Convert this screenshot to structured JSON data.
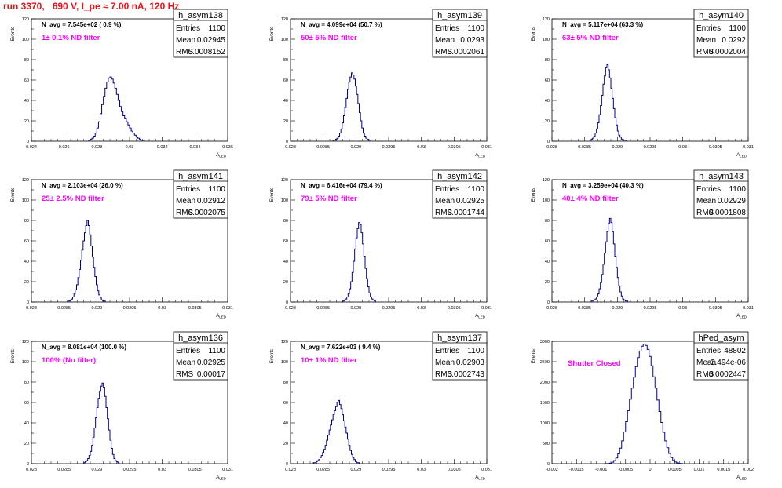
{
  "title": "run 3370,   690 V, I_pe ≈ 7.00 nA, 120 Hz",
  "colors": {
    "title": "#e8141c",
    "histogram": "#00008b",
    "filter_label": "#ff00ff"
  },
  "chart_data": [
    {
      "type": "histogram",
      "name": "h_asym138",
      "ylabel": "Events",
      "xlabel": "A_{LED}",
      "xlim": [
        0.024,
        0.036
      ],
      "ylim": [
        0,
        120
      ],
      "xticks": [
        "0.024",
        "0.026",
        "0.028",
        "0.03",
        "0.032",
        "0.034",
        "0.036"
      ],
      "yticks": [
        "0",
        "20",
        "40",
        "60",
        "80",
        "100",
        "120"
      ],
      "xtick_values": [
        0.024,
        0.026,
        0.028,
        0.03,
        0.032,
        0.034,
        0.036
      ],
      "ytick_values": [
        0,
        20,
        40,
        60,
        80,
        100,
        120
      ],
      "n_avg": "N_avg = 7.545e+02 ( 0.9 %)",
      "filter": "1± 0.1% ND filter",
      "stats": {
        "entries_label": "Entries",
        "entries": "1100",
        "mean_label": "Mean",
        "mean": "0.02945",
        "rms_label": "RMS",
        "rms": "0.0008152"
      },
      "hist": {
        "x0": 0.0275,
        "dx": 0.0001,
        "counts": [
          1,
          2,
          3,
          5,
          8,
          13,
          19,
          27,
          36,
          44,
          52,
          58,
          62,
          63,
          61,
          57,
          52,
          46,
          40,
          34,
          29,
          25,
          22,
          19,
          16,
          13,
          10,
          8,
          6,
          4,
          3,
          2,
          1,
          1
        ]
      }
    },
    {
      "type": "histogram",
      "name": "h_asym139",
      "ylabel": "Events",
      "xlabel": "A_{LED}",
      "xlim": [
        0.028,
        0.031
      ],
      "ylim": [
        0,
        120
      ],
      "xticks": [
        "0.028",
        "0.0285",
        "0.029",
        "0.0295",
        "0.03",
        "0.0305",
        "0.031"
      ],
      "yticks": [
        "0",
        "20",
        "40",
        "60",
        "80",
        "100",
        "120"
      ],
      "xtick_values": [
        0.028,
        0.0285,
        0.029,
        0.0295,
        0.03,
        0.0305,
        0.031
      ],
      "ytick_values": [
        0,
        20,
        40,
        60,
        80,
        100,
        120
      ],
      "n_avg": "N_avg = 4.099e+04 (50.7 %)",
      "filter": "50± 5% ND filter",
      "stats": {
        "entries_label": "Entries",
        "entries": "1100",
        "mean_label": "Mean",
        "mean": "0.0293",
        "rms_label": "RMS",
        "rms": "0.0002061"
      },
      "hist": {
        "x0": 0.02865,
        "dx": 2e-05,
        "counts": [
          1,
          1,
          2,
          3,
          5,
          8,
          12,
          18,
          25,
          33,
          42,
          51,
          58,
          63,
          67,
          65,
          61,
          54,
          46,
          37,
          28,
          20,
          13,
          8,
          5,
          3,
          2,
          1,
          1
        ]
      }
    },
    {
      "type": "histogram",
      "name": "h_asym140",
      "ylabel": "Events",
      "xlabel": "A_{LED}",
      "xlim": [
        0.028,
        0.031
      ],
      "ylim": [
        0,
        120
      ],
      "xticks": [
        "0.028",
        "0.0285",
        "0.029",
        "0.0295",
        "0.03",
        "0.0305",
        "0.031"
      ],
      "yticks": [
        "0",
        "20",
        "40",
        "60",
        "80",
        "100",
        "120"
      ],
      "xtick_values": [
        0.028,
        0.0285,
        0.029,
        0.0295,
        0.03,
        0.0305,
        0.031
      ],
      "ytick_values": [
        0,
        20,
        40,
        60,
        80,
        100,
        120
      ],
      "n_avg": "N_avg = 5.117e+04 (63.3 %)",
      "filter": "63± 5% ND filter",
      "stats": {
        "entries_label": "Entries",
        "entries": "1100",
        "mean_label": "Mean",
        "mean": "0.0292",
        "rms_label": "RMS",
        "rms": "0.0002004"
      },
      "hist": {
        "x0": 0.02858,
        "dx": 2e-05,
        "counts": [
          1,
          2,
          3,
          5,
          8,
          12,
          18,
          26,
          35,
          45,
          56,
          64,
          72,
          75,
          70,
          62,
          52,
          42,
          32,
          23,
          16,
          10,
          6,
          4,
          2,
          1,
          1,
          1
        ]
      }
    },
    {
      "type": "histogram",
      "name": "h_asym141",
      "ylabel": "Events",
      "xlabel": "A_{LED}",
      "xlim": [
        0.028,
        0.031
      ],
      "ylim": [
        0,
        120
      ],
      "xticks": [
        "0.028",
        "0.0285",
        "0.029",
        "0.0295",
        "0.03",
        "0.0305",
        "0.031"
      ],
      "yticks": [
        "0",
        "20",
        "40",
        "60",
        "80",
        "100",
        "120"
      ],
      "xtick_values": [
        0.028,
        0.0285,
        0.029,
        0.0295,
        0.03,
        0.0305,
        0.031
      ],
      "ytick_values": [
        0,
        20,
        40,
        60,
        80,
        100,
        120
      ],
      "n_avg": "N_avg = 2.103e+04 (26.0 %)",
      "filter": "25± 2.5% ND filter",
      "stats": {
        "entries_label": "Entries",
        "entries": "1100",
        "mean_label": "Mean",
        "mean": "0.02912",
        "rms_label": "RMS",
        "rms": "0.0002075"
      },
      "hist": {
        "x0": 0.02855,
        "dx": 2e-05,
        "counts": [
          1,
          1,
          2,
          3,
          5,
          8,
          12,
          17,
          24,
          32,
          41,
          51,
          60,
          68,
          75,
          80,
          75,
          66,
          55,
          44,
          34,
          25,
          17,
          11,
          7,
          4,
          2,
          1,
          1
        ]
      }
    },
    {
      "type": "histogram",
      "name": "h_asym142",
      "ylabel": "Events",
      "xlabel": "A_{LED}",
      "xlim": [
        0.028,
        0.031
      ],
      "ylim": [
        0,
        120
      ],
      "xticks": [
        "0.028",
        "0.0285",
        "0.029",
        "0.0295",
        "0.03",
        "0.0305",
        "0.031"
      ],
      "yticks": [
        "0",
        "20",
        "40",
        "60",
        "80",
        "100",
        "120"
      ],
      "xtick_values": [
        0.028,
        0.0285,
        0.029,
        0.0295,
        0.03,
        0.0305,
        0.031
      ],
      "ytick_values": [
        0,
        20,
        40,
        60,
        80,
        100,
        120
      ],
      "n_avg": "N_avg = 6.416e+04 (79.4 %)",
      "filter": "79± 5% ND filter",
      "stats": {
        "entries_label": "Entries",
        "entries": "1100",
        "mean_label": "Mean",
        "mean": "0.02925",
        "rms_label": "RMS",
        "rms": "0.0001744"
      },
      "hist": {
        "x0": 0.0288,
        "dx": 2e-05,
        "counts": [
          1,
          2,
          3,
          5,
          8,
          13,
          20,
          29,
          40,
          52,
          63,
          72,
          78,
          76,
          68,
          57,
          45,
          33,
          23,
          15,
          9,
          5,
          3,
          2,
          1
        ]
      }
    },
    {
      "type": "histogram",
      "name": "h_asym143",
      "ylabel": "Events",
      "xlabel": "A_{LED}",
      "xlim": [
        0.028,
        0.031
      ],
      "ylim": [
        0,
        120
      ],
      "xticks": [
        "0.028",
        "0.0285",
        "0.029",
        "0.0295",
        "0.03",
        "0.0305",
        "0.031"
      ],
      "yticks": [
        "0",
        "20",
        "40",
        "60",
        "80",
        "100",
        "120"
      ],
      "xtick_values": [
        0.028,
        0.0285,
        0.029,
        0.0295,
        0.03,
        0.0305,
        0.031
      ],
      "ytick_values": [
        0,
        20,
        40,
        60,
        80,
        100,
        120
      ],
      "n_avg": "N_avg = 3.259e+04 (40.3 %)",
      "filter": "40± 4% ND filter",
      "stats": {
        "entries_label": "Entries",
        "entries": "1100",
        "mean_label": "Mean",
        "mean": "0.02929",
        "rms_label": "RMS",
        "rms": "0.0001808"
      },
      "hist": {
        "x0": 0.0286,
        "dx": 2e-05,
        "counts": [
          1,
          1,
          2,
          3,
          5,
          8,
          13,
          19,
          27,
          37,
          48,
          59,
          69,
          77,
          82,
          78,
          69,
          57,
          45,
          34,
          24,
          16,
          10,
          6,
          3,
          2,
          1,
          1
        ]
      }
    },
    {
      "type": "histogram",
      "name": "h_asym136",
      "ylabel": "Events",
      "xlabel": "A_{LED}",
      "xlim": [
        0.028,
        0.031
      ],
      "ylim": [
        0,
        120
      ],
      "xticks": [
        "0.028",
        "0.0285",
        "0.029",
        "0.0295",
        "0.03",
        "0.0305",
        "0.031"
      ],
      "yticks": [
        "0",
        "20",
        "40",
        "60",
        "80",
        "100",
        "120"
      ],
      "xtick_values": [
        0.028,
        0.0285,
        0.029,
        0.0295,
        0.03,
        0.0305,
        0.031
      ],
      "ytick_values": [
        0,
        20,
        40,
        60,
        80,
        100,
        120
      ],
      "n_avg": "N_avg = 8.081e+04 (100.0 %)",
      "filter": "100% (No filter)",
      "stats": {
        "entries_label": "Entries",
        "entries": "1100",
        "mean_label": "Mean",
        "mean": "0.02925",
        "rms_label": "RMS",
        "rms": "0.00017"
      },
      "hist": {
        "x0": 0.0288,
        "dx": 2e-05,
        "counts": [
          1,
          2,
          3,
          5,
          8,
          12,
          18,
          26,
          35,
          45,
          55,
          64,
          71,
          76,
          79,
          75,
          66,
          55,
          44,
          33,
          23,
          15,
          9,
          5,
          3,
          2,
          1
        ]
      }
    },
    {
      "type": "histogram",
      "name": "h_asym137",
      "ylabel": "Events",
      "xlabel": "A_{LED}",
      "xlim": [
        0.028,
        0.031
      ],
      "ylim": [
        0,
        120
      ],
      "xticks": [
        "0.028",
        "0.0285",
        "0.029",
        "0.0295",
        "0.03",
        "0.0305",
        "0.031"
      ],
      "yticks": [
        "0",
        "20",
        "40",
        "60",
        "80",
        "100",
        "120"
      ],
      "xtick_values": [
        0.028,
        0.0285,
        0.029,
        0.0295,
        0.03,
        0.0305,
        0.031
      ],
      "ytick_values": [
        0,
        20,
        40,
        60,
        80,
        100,
        120
      ],
      "n_avg": "N_avg = 7.622e+03 ( 9.4 %)",
      "filter": "10± 1% ND filter",
      "stats": {
        "entries_label": "Entries",
        "entries": "1100",
        "mean_label": "Mean",
        "mean": "0.02903",
        "rms_label": "RMS",
        "rms": "0.0002743"
      },
      "hist": {
        "x0": 0.02835,
        "dx": 2e-05,
        "counts": [
          1,
          1,
          2,
          3,
          4,
          6,
          8,
          11,
          14,
          18,
          23,
          28,
          33,
          38,
          43,
          48,
          52,
          56,
          60,
          62,
          58,
          54,
          48,
          42,
          36,
          30,
          24,
          18,
          13,
          9,
          6,
          4,
          2,
          1,
          1
        ]
      }
    },
    {
      "type": "histogram",
      "name": "hPed_asym",
      "ylabel": "Events",
      "xlabel": "A_{LED}",
      "xlim": [
        -0.002,
        0.002
      ],
      "ylim": [
        0,
        3000
      ],
      "xticks": [
        "-0.002",
        "-0.0015",
        "-0.001",
        "-0.0005",
        "0",
        "0.0005",
        "0.001",
        "0.0015",
        "0.002"
      ],
      "yticks": [
        "0",
        "500",
        "1000",
        "1500",
        "2000",
        "2500",
        "3000"
      ],
      "xtick_values": [
        -0.002,
        -0.0015,
        -0.001,
        -0.0005,
        0,
        0.0005,
        0.001,
        0.0015,
        0.002
      ],
      "ytick_values": [
        0,
        500,
        1000,
        1500,
        2000,
        2500,
        3000
      ],
      "n_avg": "",
      "filter": "Shutter Closed",
      "stats": {
        "entries_label": "Entries",
        "entries": "48802",
        "mean_label": "Mean",
        "mean": "-3.494e-06",
        "rms_label": "RMS",
        "rms": "0.0002447"
      },
      "hist": {
        "x0": -0.0009,
        "dx": 4e-05,
        "counts": [
          2,
          6,
          15,
          35,
          75,
          140,
          240,
          380,
          560,
          780,
          1030,
          1300,
          1580,
          1850,
          2120,
          2380,
          2600,
          2760,
          2880,
          2930,
          2900,
          2800,
          2630,
          2400,
          2130,
          1850,
          1560,
          1280,
          1010,
          770,
          560,
          390,
          250,
          150,
          80,
          40,
          18,
          7,
          2
        ]
      }
    }
  ]
}
